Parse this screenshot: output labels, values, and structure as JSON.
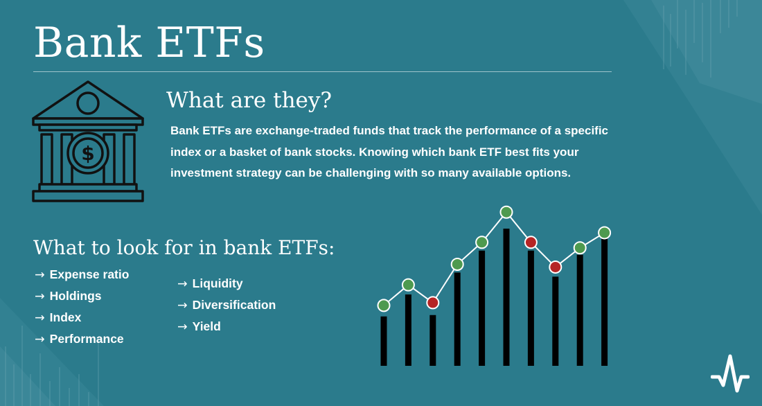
{
  "title": "Bank ETFs",
  "what_section": {
    "heading": "What are they?",
    "description": "Bank ETFs are exchange-traded funds that track the performance of a specific index or a basket of bank stocks. Knowing which bank ETF best fits your investment strategy can be challenging with so many available options."
  },
  "look_for_section": {
    "heading": "What to look for in bank ETFs:",
    "arrow": "→",
    "column_1": [
      "Expense ratio",
      "Holdings",
      "Index",
      "Performance"
    ],
    "column_2": [
      "Liquidity",
      "Diversification",
      "Yield"
    ]
  },
  "icons": {
    "bank": "bank-building-dollar-icon",
    "logo": "heartbeat-logo-icon"
  },
  "chart_data": {
    "type": "bar+line",
    "bars": [
      0.36,
      0.52,
      0.37,
      0.68,
      0.84,
      1.0,
      0.84,
      0.65,
      0.81,
      0.96
    ],
    "line": [
      0.44,
      0.59,
      0.46,
      0.74,
      0.9,
      1.12,
      0.9,
      0.72,
      0.86,
      0.97
    ],
    "marker_states": [
      "up",
      "up",
      "down",
      "up",
      "up",
      "up",
      "down",
      "down",
      "up",
      "up"
    ]
  },
  "colors": {
    "background": "#2b7b8c",
    "text": "#ffffff",
    "icon_fill": "#2b7b8c",
    "icon_stroke": "#111111",
    "bar": "#000000",
    "marker_up": "#4e9a4f",
    "marker_down": "#b52525"
  }
}
